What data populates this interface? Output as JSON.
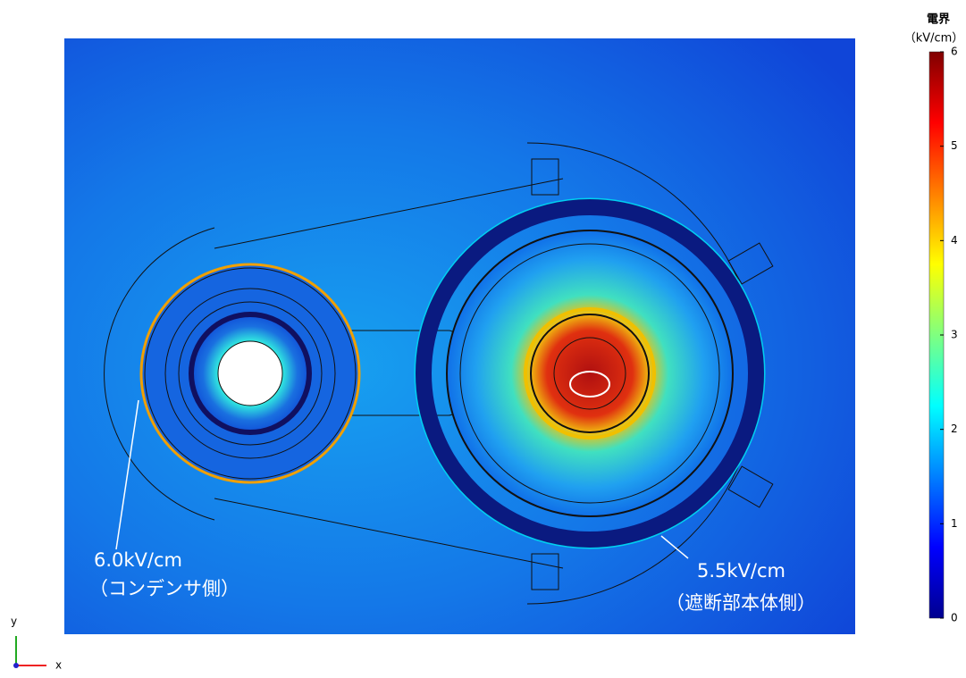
{
  "colorbar": {
    "title": "電界",
    "unit": "（kV/cm）",
    "lim": [
      0,
      6
    ],
    "ticks": [
      0,
      1,
      2,
      3,
      4,
      5,
      6
    ]
  },
  "annotations": {
    "left_value": "6.0kV/cm",
    "left_label": "（コンデンサ側）",
    "right_value": "5.5kV/cm",
    "right_label": "（遮断部本体側）"
  },
  "axes": {
    "x": "x",
    "y": "y"
  }
}
